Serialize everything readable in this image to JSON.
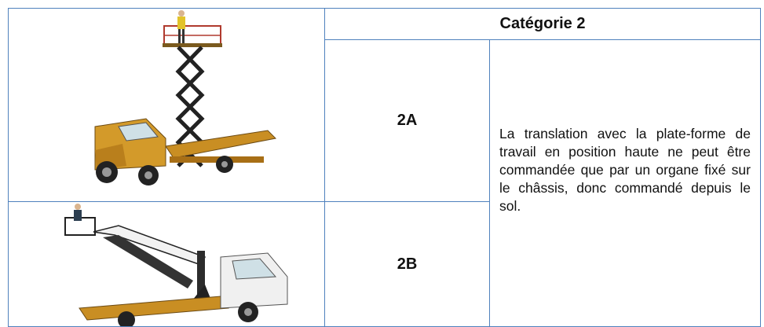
{
  "table": {
    "header": "Catégorie 2",
    "rows": [
      {
        "code": "2A"
      },
      {
        "code": "2B"
      }
    ],
    "description": "La translation avec la plate-forme de travail en position haute ne peut être commandée que par un organe fixé sur le châssis, donc commandé depuis le sol."
  }
}
